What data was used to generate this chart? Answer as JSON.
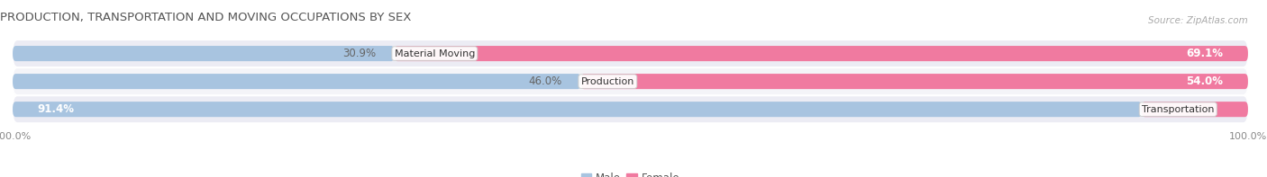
{
  "title": "PRODUCTION, TRANSPORTATION AND MOVING OCCUPATIONS BY SEX",
  "source": "Source: ZipAtlas.com",
  "categories": [
    "Transportation",
    "Production",
    "Material Moving"
  ],
  "male_values": [
    91.4,
    46.0,
    30.9
  ],
  "female_values": [
    8.6,
    54.0,
    69.1
  ],
  "male_color": "#a8c4e0",
  "female_color": "#f07aa0",
  "row_colors": [
    "#ececf4",
    "#f4f4f8",
    "#ececf4"
  ],
  "bar_height": 0.55,
  "title_fontsize": 9.5,
  "source_fontsize": 7.5,
  "label_fontsize": 8.5,
  "axis_label_fontsize": 8,
  "legend_fontsize": 8.5
}
